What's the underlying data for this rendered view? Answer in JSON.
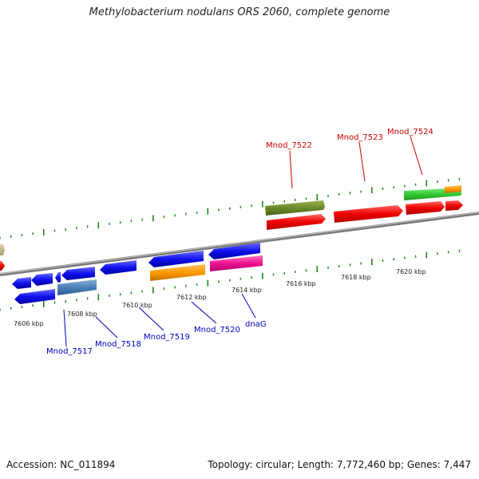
{
  "title": "Methylobacterium nodulans ORS 2060, complete genome",
  "footer": {
    "accession": "Accession: NC_011894",
    "topology": "Topology: circular; Length: 7,772,460 bp; Genes: 7,447"
  },
  "colors": {
    "backbone": "#8a8a8a",
    "ticks": "#1a8a1a",
    "forward_label": "#cc0000",
    "reverse_label": "#0000bb"
  },
  "ticks": [
    "7606 kbp",
    "7608 kbp",
    "7610 kbp",
    "7612 kbp",
    "7614 kbp",
    "7616 kbp",
    "7618 kbp",
    "7620 kbp"
  ],
  "labels": {
    "forward": [
      "Mnod_7522",
      "Mnod_7523",
      "Mnod_7524"
    ],
    "reverse": [
      "Mnod_7517",
      "Mnod_7518",
      "Mnod_7519",
      "Mnod_7520",
      "dnaG"
    ]
  }
}
